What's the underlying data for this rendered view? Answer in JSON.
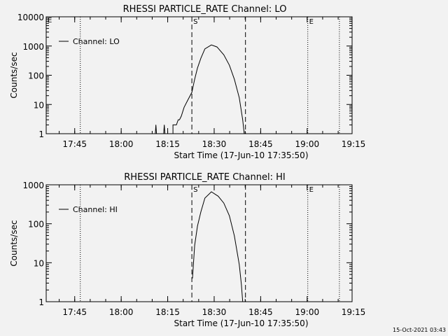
{
  "timestamp": "15-Oct-2021 03:43",
  "chart_data": [
    {
      "type": "line",
      "title": "RHESSI PARTICLE_RATE Channel: LO",
      "xlabel": "Start Time (17-Jun-10 17:35:50)",
      "ylabel": "Counts/sec",
      "x_units": "minutes after 17:35:50",
      "xlim": [
        0,
        98.7
      ],
      "yscale": "log",
      "ylim": [
        1,
        10000
      ],
      "yticks": [
        {
          "v": 1,
          "label": "1"
        },
        {
          "v": 10,
          "label": "10"
        },
        {
          "v": 100,
          "label": "100"
        },
        {
          "v": 1000,
          "label": "1000"
        },
        {
          "v": 10000,
          "label": "10000"
        }
      ],
      "xticks": [
        {
          "v": 9.2,
          "label": "17:45"
        },
        {
          "v": 24.2,
          "label": "18:00"
        },
        {
          "v": 39.2,
          "label": "18:15"
        },
        {
          "v": 54.2,
          "label": "18:30"
        },
        {
          "v": 69.2,
          "label": "18:45"
        },
        {
          "v": 84.2,
          "label": "19:00"
        },
        {
          "v": 99.2,
          "label": "19:15"
        }
      ],
      "legend": {
        "label": "Channel: LO",
        "placement": "top-left"
      },
      "vlines": [
        {
          "x": 11.0,
          "style": "dotted",
          "label": ""
        },
        {
          "x": 47.0,
          "style": "dashed",
          "label": "S"
        },
        {
          "x": 64.3,
          "style": "dashed",
          "label": ""
        },
        {
          "x": 84.4,
          "style": "dotted",
          "label": "E"
        },
        {
          "x": 94.6,
          "style": "dotted",
          "label": ""
        }
      ],
      "corner_label": "E",
      "series": [
        {
          "name": "Channel: LO",
          "x": [
            0,
            35.2,
            35.4,
            35.6,
            37.9,
            38.1,
            38.3,
            40.9,
            40.9,
            42.0,
            42.6,
            43.0,
            43.6,
            44.5,
            45.5,
            47.0,
            47.9,
            48.8,
            49.9,
            51.2,
            53.3,
            55.1,
            57.3,
            59.1,
            60.7,
            62.3,
            63.4,
            63.9,
            98.7
          ],
          "y": [
            1,
            1,
            2,
            1,
            1,
            2,
            1,
            1,
            2,
            2,
            3,
            3,
            4,
            8,
            13,
            26,
            73,
            176,
            380,
            800,
            1090,
            930,
            500,
            220,
            73,
            17,
            3,
            1,
            1
          ]
        }
      ]
    },
    {
      "type": "line",
      "title": "RHESSI PARTICLE_RATE Channel: HI",
      "xlabel": "Start Time (17-Jun-10 17:35:50)",
      "ylabel": "Counts/sec",
      "x_units": "minutes after 17:35:50",
      "xlim": [
        0,
        98.7
      ],
      "yscale": "log",
      "ylim": [
        1,
        1000
      ],
      "yticks": [
        {
          "v": 1,
          "label": "1"
        },
        {
          "v": 10,
          "label": "10"
        },
        {
          "v": 100,
          "label": "100"
        },
        {
          "v": 1000,
          "label": "1000"
        }
      ],
      "xticks": [
        {
          "v": 9.2,
          "label": "17:45"
        },
        {
          "v": 24.2,
          "label": "18:00"
        },
        {
          "v": 39.2,
          "label": "18:15"
        },
        {
          "v": 54.2,
          "label": "18:30"
        },
        {
          "v": 69.2,
          "label": "18:45"
        },
        {
          "v": 84.2,
          "label": "19:00"
        },
        {
          "v": 99.2,
          "label": "19:15"
        }
      ],
      "legend": {
        "label": "Channel: HI",
        "placement": "top-left"
      },
      "vlines": [
        {
          "x": 11.0,
          "style": "dotted",
          "label": ""
        },
        {
          "x": 47.0,
          "style": "dashed",
          "label": "S"
        },
        {
          "x": 64.3,
          "style": "dashed",
          "label": ""
        },
        {
          "x": 84.4,
          "style": "dotted",
          "label": "E"
        },
        {
          "x": 94.6,
          "style": "dotted",
          "label": ""
        }
      ],
      "corner_label": "",
      "series": [
        {
          "name": "Channel: HI",
          "x": [
            47.2,
            47.9,
            48.8,
            49.9,
            51.2,
            53.3,
            55.5,
            57.3,
            59.1,
            60.7,
            62.3,
            63.0,
            63.4
          ],
          "y": [
            4,
            28,
            87,
            200,
            455,
            660,
            510,
            340,
            160,
            49,
            9,
            2.7,
            1
          ]
        }
      ]
    }
  ]
}
